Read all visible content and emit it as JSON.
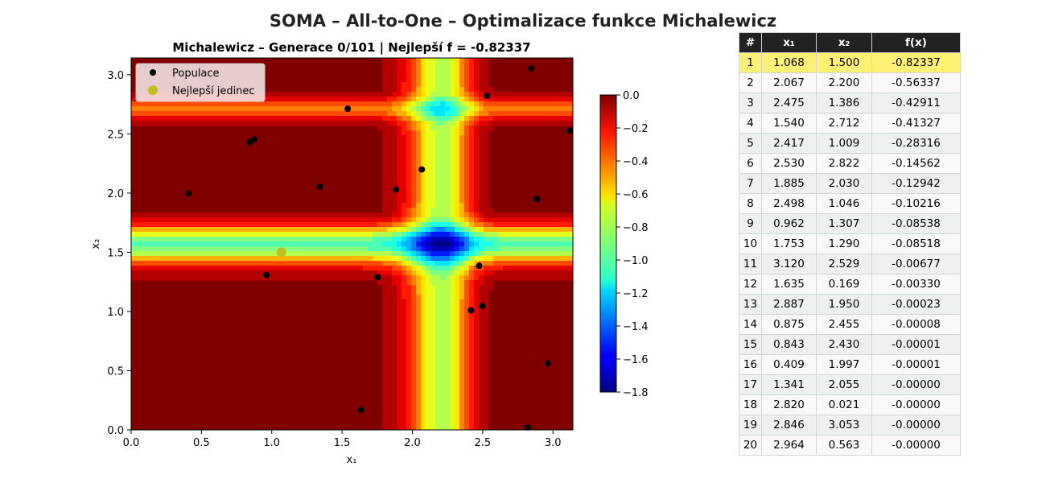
{
  "figure": {
    "suptitle": "SOMA – All-to-One – Optimalizace funkce Michalewicz"
  },
  "chart_data": {
    "type": "heatmap",
    "title": "Michalewicz – Generace 0/101 | Nejlepší f = -0.82337",
    "xlabel": "x₁",
    "ylabel": "x₂",
    "xlim": [
      0,
      3.1416
    ],
    "ylim": [
      0,
      3.1416
    ],
    "xticks": [
      "0.0",
      "0.5",
      "1.0",
      "1.5",
      "2.0",
      "2.5",
      "3.0"
    ],
    "yticks": [
      "0.0",
      "0.5",
      "1.0",
      "1.5",
      "2.0",
      "2.5",
      "3.0"
    ],
    "colormap": "jet",
    "colorbar": {
      "min": -1.8,
      "max": 0.0,
      "ticks": [
        "0.0",
        "−0.2",
        "−0.4",
        "−0.6",
        "−0.8",
        "−1.0",
        "−1.2",
        "−1.4",
        "−1.6",
        "−1.8"
      ]
    },
    "legend": {
      "location": "upper-left",
      "entries": [
        "Populace",
        "Nejlepší jedinec"
      ]
    },
    "series": [
      {
        "name": "Populace",
        "color": "#000000",
        "points": [
          [
            1.068,
            1.5
          ],
          [
            2.067,
            2.2
          ],
          [
            2.475,
            1.386
          ],
          [
            1.54,
            2.712
          ],
          [
            2.417,
            1.009
          ],
          [
            2.53,
            2.822
          ],
          [
            1.885,
            2.03
          ],
          [
            2.498,
            1.046
          ],
          [
            0.962,
            1.307
          ],
          [
            1.753,
            1.29
          ],
          [
            3.12,
            2.529
          ],
          [
            1.635,
            0.169
          ],
          [
            2.887,
            1.95
          ],
          [
            0.875,
            2.455
          ],
          [
            0.843,
            2.43
          ],
          [
            0.409,
            1.997
          ],
          [
            1.341,
            2.055
          ],
          [
            2.82,
            0.021
          ],
          [
            2.846,
            3.053
          ],
          [
            2.964,
            0.563
          ]
        ]
      },
      {
        "name": "Nejlepší jedinec",
        "color": "#bfbf1f",
        "points": [
          [
            1.068,
            1.5
          ]
        ]
      }
    ]
  },
  "table": {
    "headers": [
      "#",
      "x₁",
      "x₂",
      "f(x)"
    ],
    "rows": [
      [
        "1",
        "1.068",
        "1.500",
        "-0.82337"
      ],
      [
        "2",
        "2.067",
        "2.200",
        "-0.56337"
      ],
      [
        "3",
        "2.475",
        "1.386",
        "-0.42911"
      ],
      [
        "4",
        "1.540",
        "2.712",
        "-0.41327"
      ],
      [
        "5",
        "2.417",
        "1.009",
        "-0.28316"
      ],
      [
        "6",
        "2.530",
        "2.822",
        "-0.14562"
      ],
      [
        "7",
        "1.885",
        "2.030",
        "-0.12942"
      ],
      [
        "8",
        "2.498",
        "1.046",
        "-0.10216"
      ],
      [
        "9",
        "0.962",
        "1.307",
        "-0.08538"
      ],
      [
        "10",
        "1.753",
        "1.290",
        "-0.08518"
      ],
      [
        "11",
        "3.120",
        "2.529",
        "-0.00677"
      ],
      [
        "12",
        "1.635",
        "0.169",
        "-0.00330"
      ],
      [
        "13",
        "2.887",
        "1.950",
        "-0.00023"
      ],
      [
        "14",
        "0.875",
        "2.455",
        "-0.00008"
      ],
      [
        "15",
        "0.843",
        "2.430",
        "-0.00001"
      ],
      [
        "16",
        "0.409",
        "1.997",
        "-0.00001"
      ],
      [
        "17",
        "1.341",
        "2.055",
        "-0.00000"
      ],
      [
        "18",
        "2.820",
        "0.021",
        "-0.00000"
      ],
      [
        "19",
        "2.846",
        "3.053",
        "-0.00000"
      ],
      [
        "20",
        "2.964",
        "0.563",
        "-0.00000"
      ]
    ],
    "highlight_color": "#fff176",
    "header_color": "#222222"
  }
}
